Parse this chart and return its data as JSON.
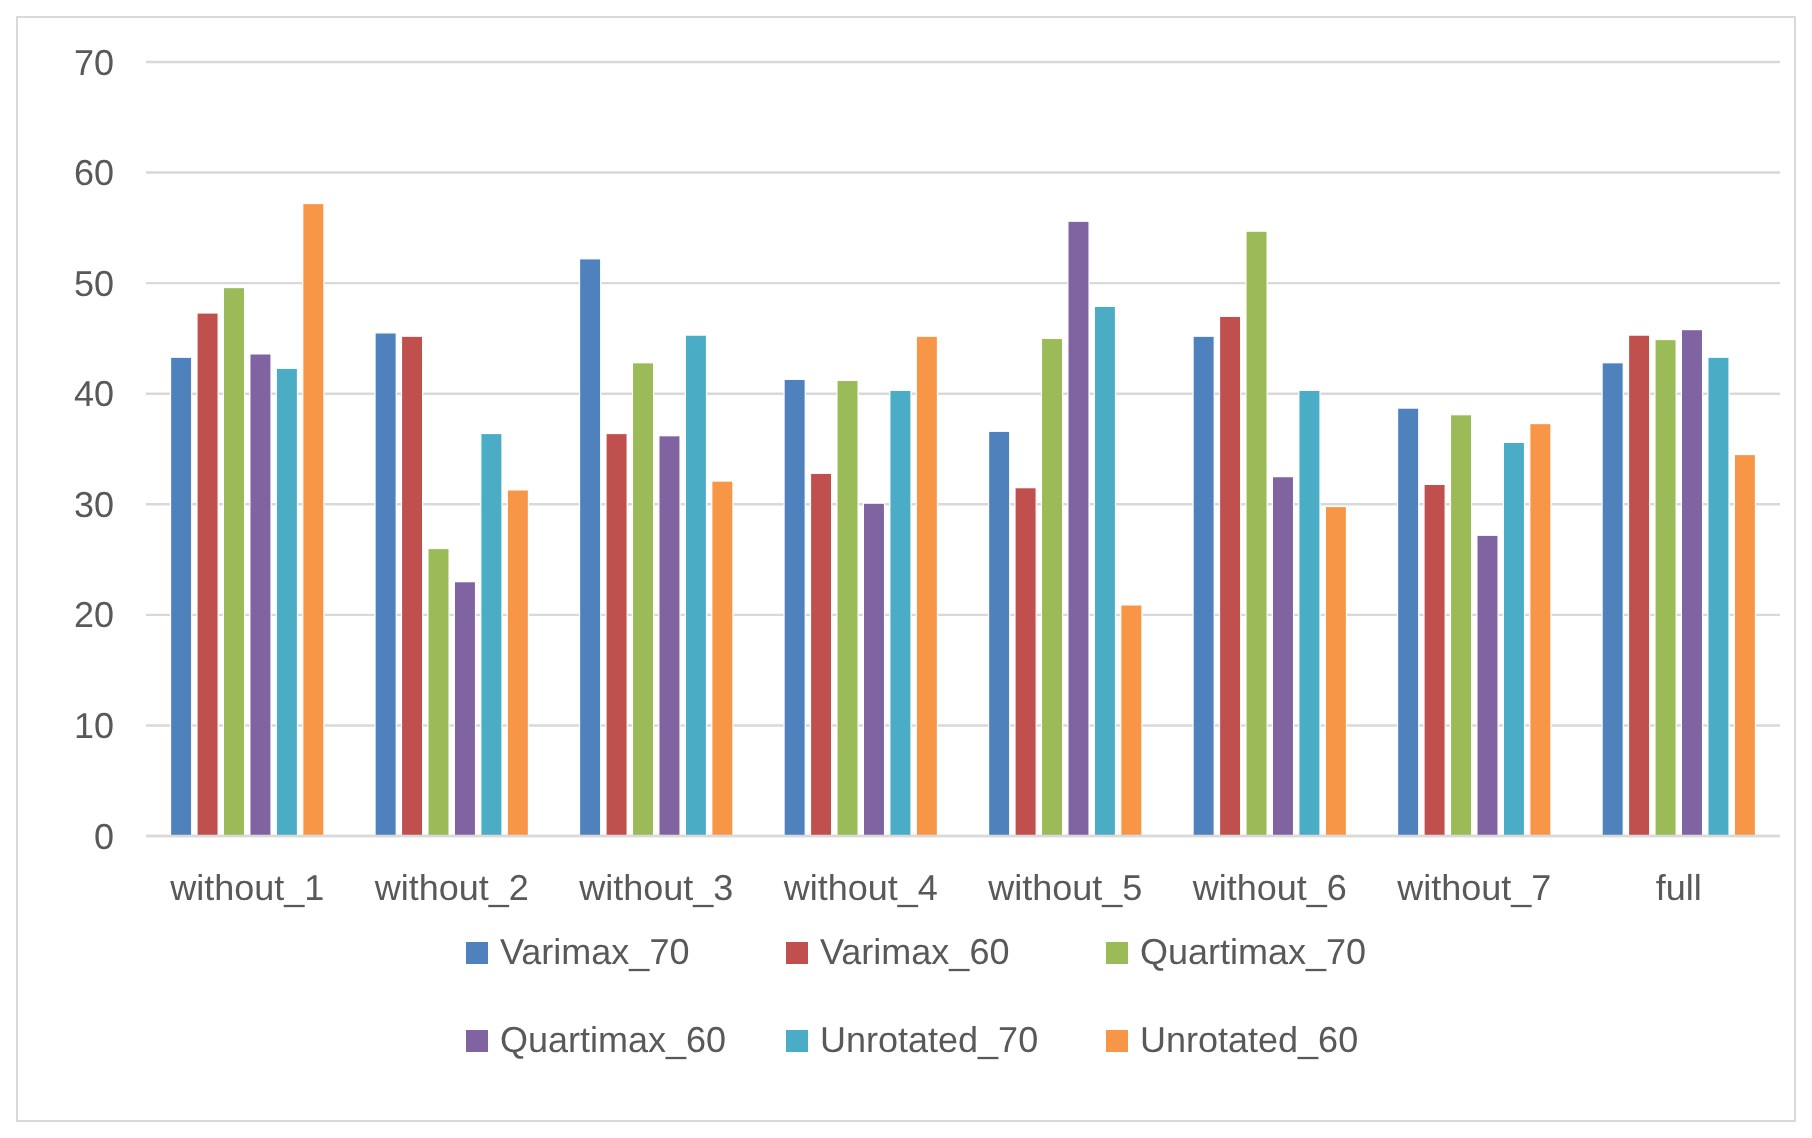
{
  "chart_data": {
    "type": "bar",
    "categories": [
      "without_1",
      "without_2",
      "without_3",
      "without_4",
      "without_5",
      "without_6",
      "without_7",
      "full"
    ],
    "series": [
      {
        "name": "Varimax_70",
        "color": "#4f81bd",
        "values": [
          43.3,
          45.5,
          52.2,
          41.3,
          36.6,
          45.2,
          38.7,
          42.8
        ]
      },
      {
        "name": "Varimax_60",
        "color": "#c0504d",
        "values": [
          47.3,
          45.2,
          36.4,
          32.8,
          31.5,
          47.0,
          31.8,
          45.3
        ]
      },
      {
        "name": "Quartimax_70",
        "color": "#9bbb59",
        "values": [
          49.6,
          26.0,
          42.8,
          41.2,
          45.0,
          54.7,
          38.1,
          44.9
        ]
      },
      {
        "name": "Quartimax_60",
        "color": "#8064a2",
        "values": [
          43.6,
          23.0,
          36.2,
          30.1,
          55.6,
          32.5,
          27.2,
          45.8
        ]
      },
      {
        "name": "Unrotated_70",
        "color": "#4bacc6",
        "values": [
          42.3,
          36.4,
          45.3,
          40.3,
          47.9,
          40.3,
          35.6,
          43.3
        ]
      },
      {
        "name": "Unrotated_60",
        "color": "#f79646",
        "values": [
          57.2,
          31.3,
          32.1,
          45.2,
          20.9,
          29.8,
          37.3,
          34.5
        ]
      }
    ],
    "ylim": [
      0,
      70
    ],
    "yticks": [
      0,
      10,
      20,
      30,
      40,
      50,
      60,
      70
    ],
    "grid": "y",
    "legend": "bottom"
  }
}
